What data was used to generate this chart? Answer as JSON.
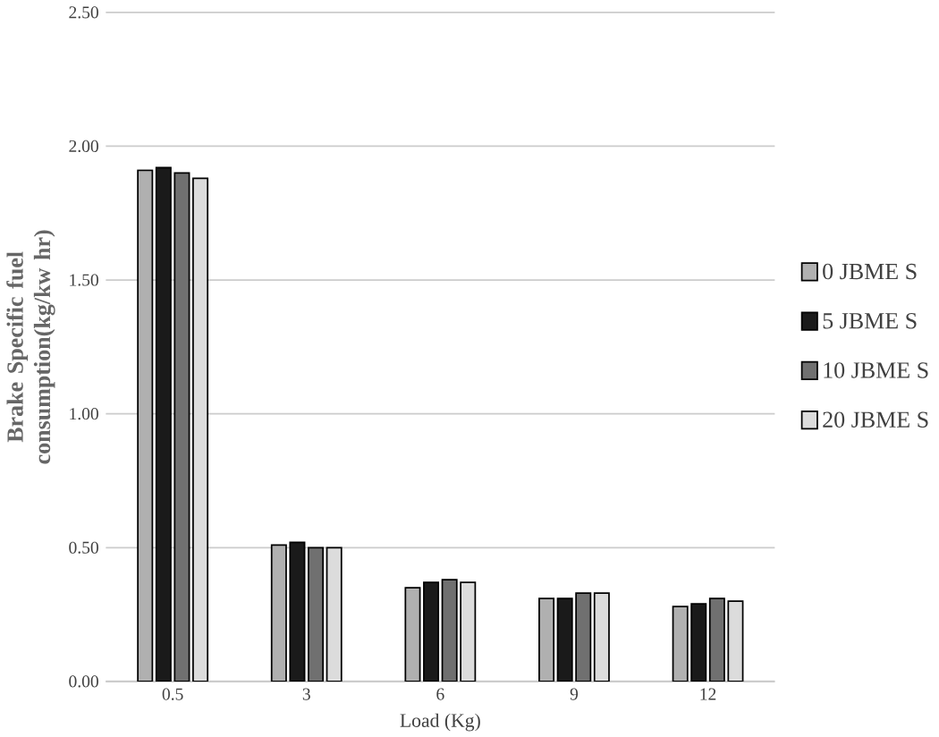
{
  "chart_data": {
    "type": "bar",
    "xlabel": "Load (Kg)",
    "ylabel": "Brake Specific fuel consumption(kg/kw hr)",
    "categories": [
      "0.5",
      "3",
      "6",
      "9",
      "12"
    ],
    "series": [
      {
        "name": "0 JBME S",
        "color": "#b0b0b0",
        "values": [
          1.91,
          0.51,
          0.35,
          0.31,
          0.28
        ]
      },
      {
        "name": "5 JBME S",
        "color": "#1a1a1a",
        "values": [
          1.92,
          0.52,
          0.37,
          0.31,
          0.29
        ]
      },
      {
        "name": "10 JBME S",
        "color": "#707070",
        "values": [
          1.9,
          0.5,
          0.38,
          0.33,
          0.31
        ]
      },
      {
        "name": "20 JBME S",
        "color": "#dcdcdc",
        "values": [
          1.88,
          0.5,
          0.37,
          0.33,
          0.3
        ]
      }
    ],
    "ylim": [
      0,
      2.5
    ],
    "yticks": [
      {
        "value": 0,
        "label": "0.00"
      },
      {
        "value": 0.5,
        "label": "0.50"
      },
      {
        "value": 1,
        "label": "1.00"
      },
      {
        "value": 1.5,
        "label": "1.50"
      },
      {
        "value": 2,
        "label": "2.00"
      },
      {
        "value": 2.5,
        "label": "2.50"
      }
    ],
    "grid": "y",
    "legend": "right"
  }
}
